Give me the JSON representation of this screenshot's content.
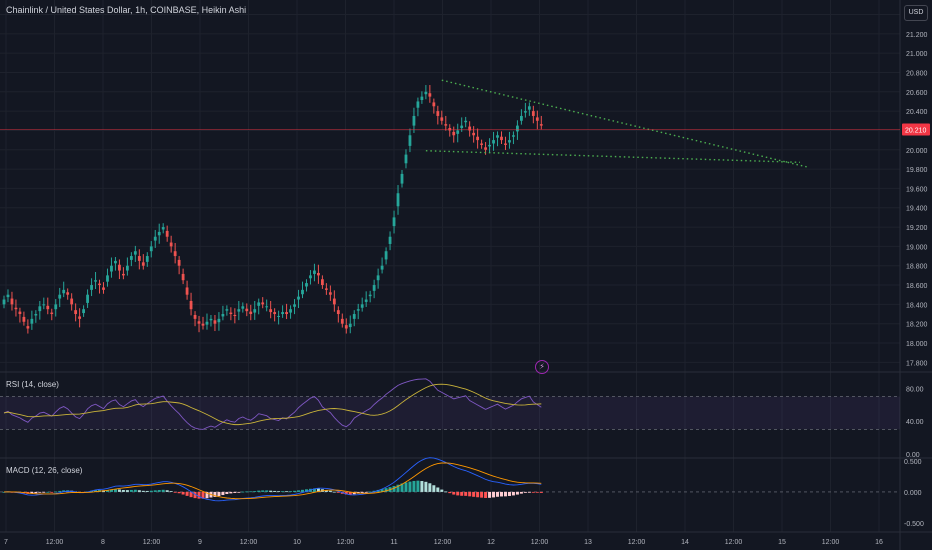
{
  "header": {
    "title": "Chainlink / United States Dollar, 1h, COINBASE, Heikin Ashi",
    "currency": "USD"
  },
  "colors": {
    "background": "#131722",
    "up": "#26a69a",
    "down": "#ef5350",
    "grid": "#1e222d",
    "trendline": "#4caf50",
    "rsi_line": "#7e57c2",
    "rsi_ma": "#c9b33a",
    "macd_line": "#2962ff",
    "signal_line": "#ff9800",
    "price_tag": "#f23645"
  },
  "lightning_icon": "lightning-icon",
  "chart_data": [
    {
      "type": "candlestick",
      "pane": "price",
      "ylim": [
        17.7,
        21.55
      ],
      "yticks": [
        17.8,
        18.0,
        18.2,
        18.4,
        18.6,
        18.8,
        19.0,
        19.2,
        19.4,
        19.6,
        19.8,
        20.0,
        20.2,
        20.4,
        20.6,
        20.8,
        21.0,
        21.2,
        21.4
      ],
      "ytick_labels": [
        "17.800",
        "18.000",
        "18.200",
        "18.400",
        "18.600",
        "18.800",
        "19.000",
        "19.200",
        "19.400",
        "19.600",
        "19.800",
        "20.000",
        "20.200",
        "20.400",
        "20.600",
        "20.800",
        "21.000",
        "21.200",
        "21.400"
      ],
      "current_price": 20.21,
      "current_price_label": "20.210",
      "xtick_labels": [
        "7",
        "12:00",
        "8",
        "12:00",
        "9",
        "12:00",
        "10",
        "12:00",
        "11",
        "12:00",
        "12",
        "12:00",
        "13",
        "12:00",
        "14",
        "12:00",
        "15",
        "12:00",
        "16"
      ],
      "close": [
        18.45,
        18.5,
        18.4,
        18.35,
        18.3,
        18.22,
        18.15,
        18.25,
        18.3,
        18.38,
        18.4,
        18.35,
        18.3,
        18.4,
        18.5,
        18.55,
        18.5,
        18.4,
        18.3,
        18.25,
        18.35,
        18.5,
        18.6,
        18.65,
        18.6,
        18.55,
        18.7,
        18.8,
        18.85,
        18.75,
        18.7,
        18.8,
        18.9,
        18.95,
        18.85,
        18.8,
        18.9,
        19.0,
        19.1,
        19.15,
        19.2,
        19.1,
        19.0,
        18.9,
        18.8,
        18.65,
        18.5,
        18.35,
        18.25,
        18.2,
        18.18,
        18.22,
        18.25,
        18.2,
        18.25,
        18.3,
        18.35,
        18.3,
        18.28,
        18.35,
        18.38,
        18.33,
        18.3,
        18.35,
        18.42,
        18.4,
        18.38,
        18.32,
        18.3,
        18.28,
        18.32,
        18.3,
        18.35,
        18.4,
        18.48,
        18.55,
        18.62,
        18.7,
        18.75,
        18.7,
        18.6,
        18.55,
        18.5,
        18.4,
        18.3,
        18.2,
        18.15,
        18.2,
        18.3,
        18.35,
        18.4,
        18.45,
        18.5,
        18.6,
        18.7,
        18.8,
        18.95,
        19.1,
        19.3,
        19.55,
        19.75,
        19.95,
        20.15,
        20.35,
        20.5,
        20.55,
        20.6,
        20.55,
        20.45,
        20.35,
        20.3,
        20.25,
        20.2,
        20.15,
        20.2,
        20.25,
        20.3,
        20.2,
        20.15,
        20.1,
        20.05,
        20.0,
        20.05,
        20.1,
        20.15,
        20.1,
        20.05,
        20.1,
        20.15,
        20.25,
        20.35,
        20.4,
        20.45,
        20.35,
        20.3,
        20.25
      ],
      "trendlines": [
        {
          "from": [
            110,
            20.72
          ],
          "to": [
            202,
            19.82
          ]
        },
        {
          "from": [
            106,
            19.99
          ],
          "to": [
            200,
            19.87
          ]
        }
      ]
    },
    {
      "type": "line",
      "pane": "rsi",
      "label": "RSI (14, close)",
      "ylim": [
        -5,
        100
      ],
      "yticks": [
        0,
        40,
        80
      ],
      "ytick_labels": [
        "0.00",
        "40.00",
        "80.00"
      ],
      "band": [
        30,
        70
      ]
    },
    {
      "type": "histogram",
      "pane": "macd",
      "label": "MACD (12, 26, close)",
      "ylim": [
        -0.65,
        0.55
      ],
      "yticks": [
        -0.5,
        0,
        0.5
      ],
      "ytick_labels": [
        "-0.500",
        "0.000",
        "0.500"
      ]
    }
  ]
}
